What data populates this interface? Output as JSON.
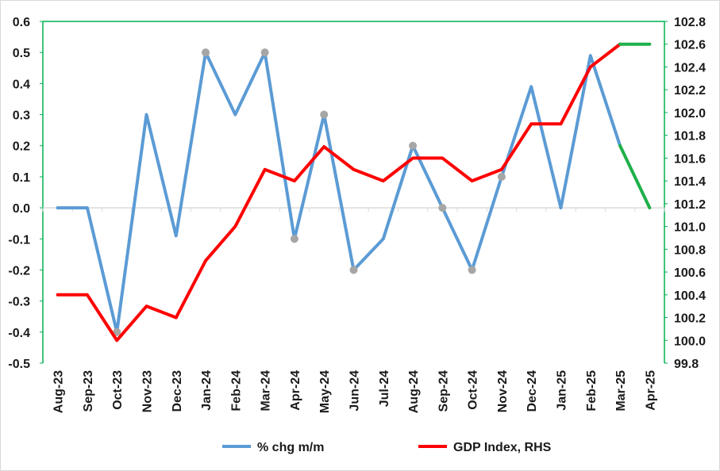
{
  "chart_data": {
    "type": "line",
    "categories": [
      "Aug-23",
      "Sep-23",
      "Oct-23",
      "Nov-23",
      "Dec-23",
      "Jan-24",
      "Feb-24",
      "Mar-24",
      "Apr-24",
      "May-24",
      "Jun-24",
      "Jul-24",
      "Aug-24",
      "Sep-24",
      "Oct-24",
      "Nov-24",
      "Dec-24",
      "Jan-25",
      "Feb-25",
      "Mar-25",
      "Apr-25"
    ],
    "y_left": {
      "min": -0.5,
      "max": 0.6,
      "step": 0.1,
      "tick_labels": [
        "0.6",
        "0.5",
        "0.4",
        "0.3",
        "0.2",
        "0.1",
        "0.0",
        "-0.1",
        "-0.2",
        "-0.3",
        "-0.4",
        "-0.5"
      ]
    },
    "y_right": {
      "min": 99.8,
      "max": 102.8,
      "step": 0.2,
      "tick_labels": [
        "102.8",
        "102.6",
        "102.4",
        "102.2",
        "102.0",
        "101.8",
        "101.6",
        "101.4",
        "101.2",
        "101.0",
        "100.8",
        "100.6",
        "100.4",
        "100.2",
        "100.0",
        "99.8"
      ]
    },
    "series": [
      {
        "name": "% chg m/m",
        "axis": "left",
        "color": "#5b9bd5",
        "values": [
          0.0,
          0.0,
          -0.4,
          0.3,
          -0.09,
          0.5,
          0.3,
          0.5,
          -0.1,
          0.3,
          -0.2,
          -0.1,
          0.2,
          0.0,
          -0.2,
          0.1,
          0.39,
          0.0,
          0.49,
          0.2,
          0.0
        ],
        "projection_from_index": 19,
        "projection_color": "#1fb04a",
        "markers": [
          2,
          5,
          7,
          8,
          9,
          10,
          12,
          13,
          14,
          15
        ],
        "marker_color": "#a6a6a6"
      },
      {
        "name": "GDP Index, RHS",
        "axis": "right",
        "color": "#ff0000",
        "values": [
          100.4,
          100.4,
          100.0,
          100.3,
          100.2,
          100.7,
          101.0,
          101.5,
          101.4,
          101.7,
          101.5,
          101.4,
          101.6,
          101.6,
          101.4,
          101.5,
          101.9,
          101.9,
          102.4,
          102.6,
          102.6
        ],
        "projection_from_index": 19,
        "projection_color": "#1fb04a"
      }
    ],
    "grid": false,
    "legend_position": "bottom",
    "axis_border_color": "#00b050"
  }
}
